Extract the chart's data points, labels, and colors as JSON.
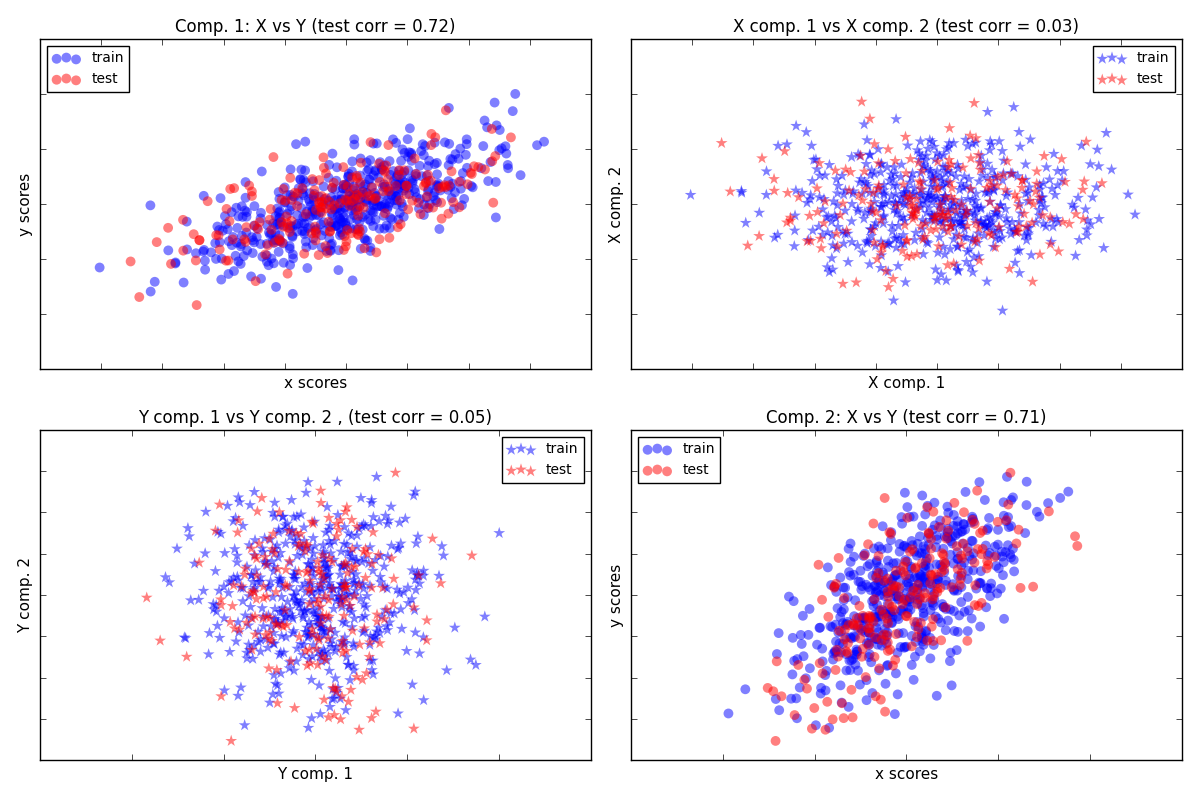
{
  "title_00": "Comp. 1: X vs Y (test corr = 0.72)",
  "title_01": "X comp. 1 vs X comp. 2 (test corr = 0.03)",
  "title_10": "Y comp. 1 vs Y comp. 2 , (test corr = 0.05)",
  "title_11": "Comp. 2: X vs Y (test corr = 0.71)",
  "xlabel_00": "x scores",
  "ylabel_00": "y scores",
  "xlabel_01": "X comp. 1",
  "ylabel_01": "X comp. 2",
  "xlabel_10": "Y comp. 1",
  "ylabel_10": "Y comp. 2",
  "xlabel_11": "x scores",
  "ylabel_11": "y scores",
  "train_color": "#0000ff",
  "test_color": "#ff0000",
  "circle_marker": "o",
  "star_marker": "*",
  "marker_size_circle": 50,
  "marker_size_star": 80,
  "alpha": 0.5,
  "figsize": [
    12,
    8
  ],
  "dpi": 100,
  "n_train": 500,
  "n_test": 200,
  "n_components": 2,
  "random_seed": 0
}
